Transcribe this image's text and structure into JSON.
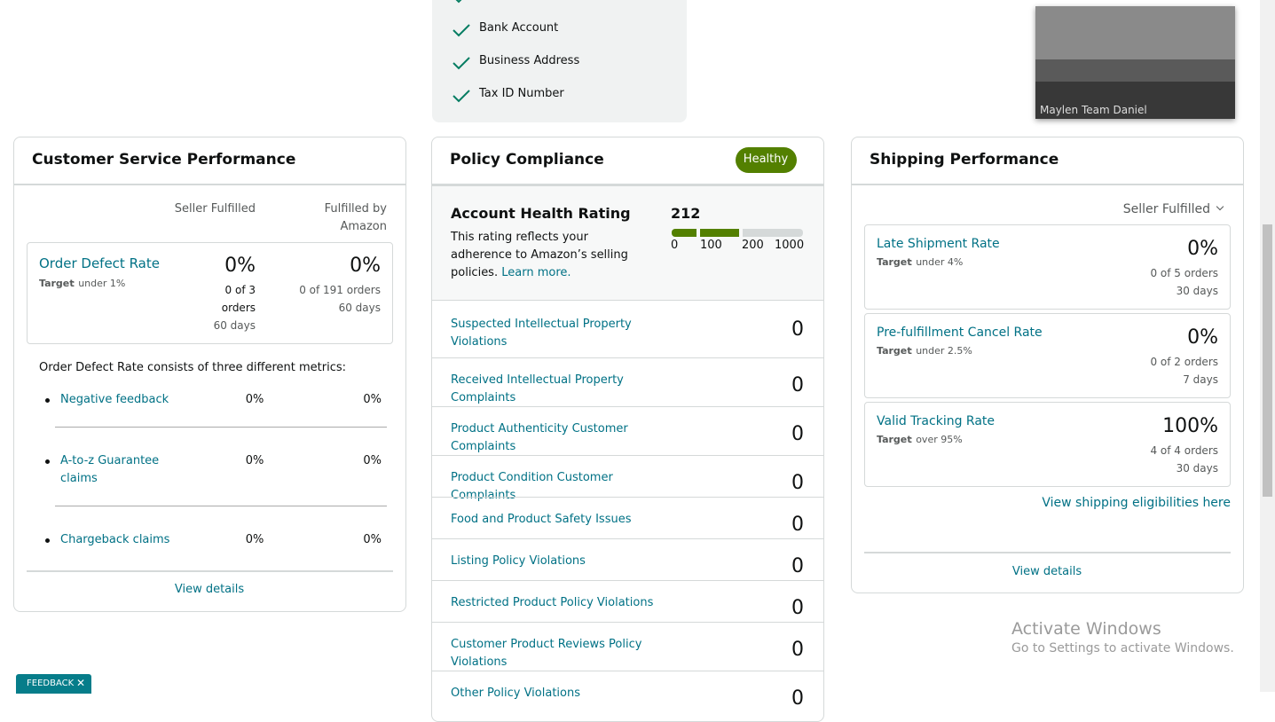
{
  "verification": {
    "items": [
      "Bank Account",
      "Business Address",
      "Tax ID Number"
    ]
  },
  "video_call": {
    "participant": "Maylen Team Daniel"
  },
  "customer_service": {
    "title": "Customer Service Performance",
    "columns": [
      "Seller Fulfilled",
      "Fulfilled by Amazon"
    ],
    "order_defect_rate": {
      "name": "Order Defect Rate",
      "target_label": "Target",
      "target": ": under 1%",
      "seller_fulfilled": {
        "rate": "0%",
        "orders": "0 of 3 orders",
        "period": "60 days"
      },
      "fba": {
        "rate": "0%",
        "orders": "0 of 191 orders",
        "period": "60 days"
      }
    },
    "description": "Order Defect Rate consists of three different metrics:",
    "metrics": [
      {
        "name": "Negative feedback",
        "seller_fulfilled": "0%",
        "fba": "0%"
      },
      {
        "name": "A-to-z Guarantee claims",
        "seller_fulfilled": "0%",
        "fba": "0%"
      },
      {
        "name": "Chargeback claims",
        "seller_fulfilled": "0%",
        "fba": "0%"
      }
    ],
    "link": "View details"
  },
  "policy_compliance": {
    "title": "Policy Compliance",
    "status": "Healthy",
    "rating_title": "Account Health Rating",
    "rating": 212,
    "description": "This rating reflects your adherence to Amazon’s selling policies.",
    "learn_more": "Learn more.",
    "scale": [
      0,
      100,
      200,
      1000
    ],
    "rows": [
      {
        "name": "Suspected Intellectual Property Violations",
        "count": 0
      },
      {
        "name": "Received Intellectual Property Complaints",
        "count": 0
      },
      {
        "name": "Product Authenticity Customer Complaints",
        "count": 0
      },
      {
        "name": "Product Condition Customer Complaints",
        "count": 0
      },
      {
        "name": "Food and Product Safety Issues",
        "count": 0
      },
      {
        "name": "Listing Policy Violations",
        "count": 0
      },
      {
        "name": "Restricted Product Policy Violations",
        "count": 0
      },
      {
        "name": "Customer Product Reviews Policy Violations",
        "count": 0
      },
      {
        "name": "Other Policy Violations",
        "count": 0
      }
    ]
  },
  "shipping_performance": {
    "title": "Shipping Performance",
    "filter": "Seller Fulfilled",
    "metrics": [
      {
        "name": "Late Shipment Rate",
        "target_label": "Target",
        "target": ": under 4%",
        "rate": "0%",
        "orders": "0 of 5 orders",
        "period": "30 days"
      },
      {
        "name": "Pre-fulfillment Cancel Rate",
        "target_label": "Target",
        "target": ": under 2.5%",
        "rate": "0%",
        "orders": "0 of 2 orders",
        "period": "7 days"
      },
      {
        "name": "Valid Tracking Rate",
        "target_label": "Target",
        "target": ": over 95%",
        "rate": "100%",
        "orders": "4 of 4 orders",
        "period": "30 days"
      }
    ],
    "eligibility_link": "View shipping eligibilities here",
    "link": "View details"
  },
  "windows_notice": {
    "title": "Activate Windows",
    "subtitle": "Go to Settings to activate Windows."
  },
  "feedback": {
    "label": "FEEDBACK"
  }
}
